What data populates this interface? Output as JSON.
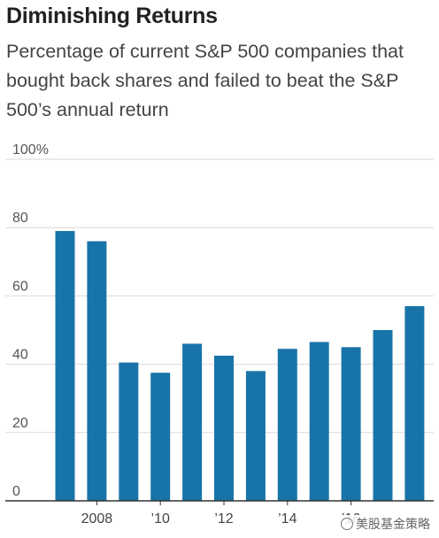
{
  "header": {
    "title": "Diminishing Returns",
    "subtitle": "Percentage of current S&P 500 companies that bought back shares and failed to beat the S&P 500’s annual return"
  },
  "watermark": {
    "text": "美股基金策略",
    "icon": "wechat-icon"
  },
  "colors": {
    "bar": "#1874a8",
    "grid": "#d9d9d9",
    "axis": "#333333"
  },
  "chart_data": {
    "type": "bar",
    "title": "Diminishing Returns",
    "subtitle": "Percentage of current S&P 500 companies that bought back shares and failed to beat the S&P 500’s annual return",
    "categories": [
      "2007",
      "2008",
      "2009",
      "2010",
      "2011",
      "2012",
      "2013",
      "2014",
      "2015",
      "2016",
      "2017",
      "2018"
    ],
    "values": [
      79,
      76,
      40.5,
      37.5,
      46,
      42.5,
      38,
      44.5,
      46.5,
      45,
      50,
      57
    ],
    "xlabel": "",
    "ylabel": "",
    "ylim": [
      0,
      100
    ],
    "yticks": [
      0,
      20,
      40,
      60,
      80,
      100
    ],
    "ytick_labels": [
      "0",
      "20",
      "40",
      "60",
      "80",
      "100%"
    ],
    "xtick_labels": [
      {
        "at": "2008",
        "label": "2008"
      },
      {
        "at": "2010",
        "label": "’10"
      },
      {
        "at": "2012",
        "label": "’12"
      },
      {
        "at": "2014",
        "label": "’14"
      },
      {
        "at": "2016",
        "label": "’16"
      }
    ],
    "grid": true,
    "legend": "none"
  }
}
